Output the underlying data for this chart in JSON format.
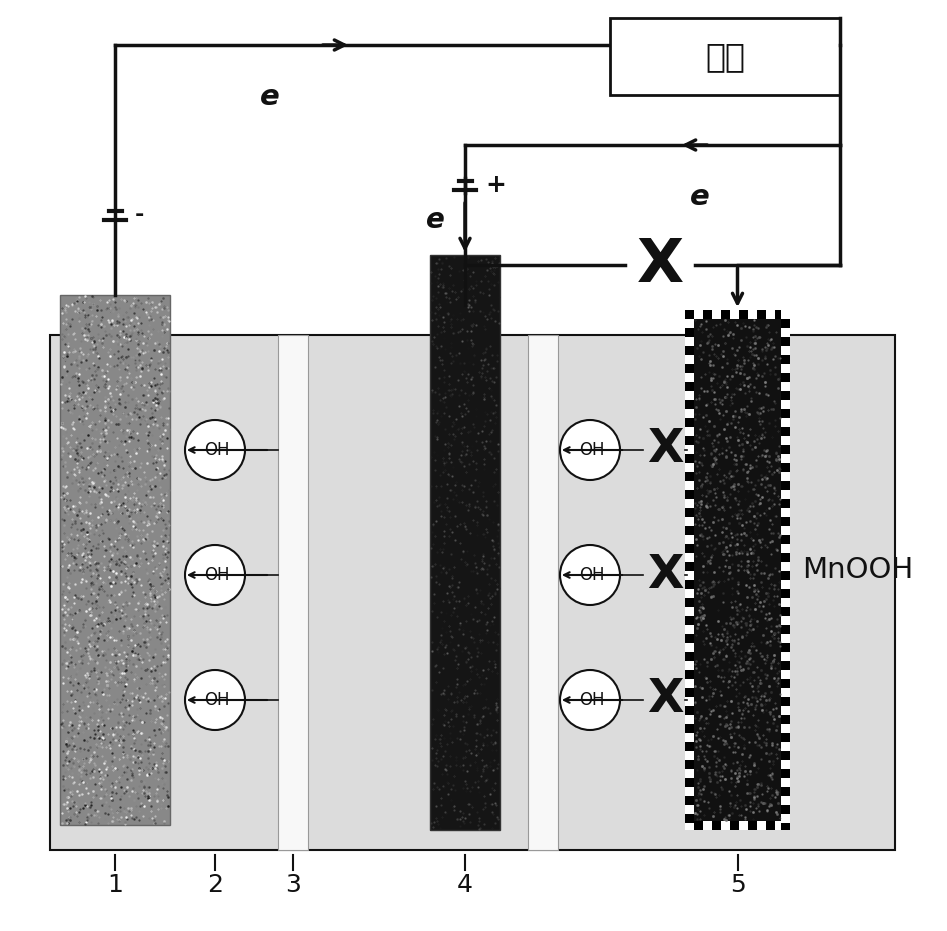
{
  "white_bg": "#ffffff",
  "fig_width": 9.47,
  "fig_height": 9.31,
  "load_label": "负载",
  "minus_label": "-",
  "plus_label": "+",
  "e_label": "e",
  "mnooh_label": "MnOOH",
  "oh_label": "OH",
  "x_symbol": "X",
  "labels": [
    "1",
    "2",
    "3",
    "4",
    "5"
  ],
  "bath_color": "#dcdcdc",
  "sep_color": "#f0f0f0",
  "e1_color": "#aaaaaa",
  "e4_color": "#151515",
  "e5_color": "#151515"
}
